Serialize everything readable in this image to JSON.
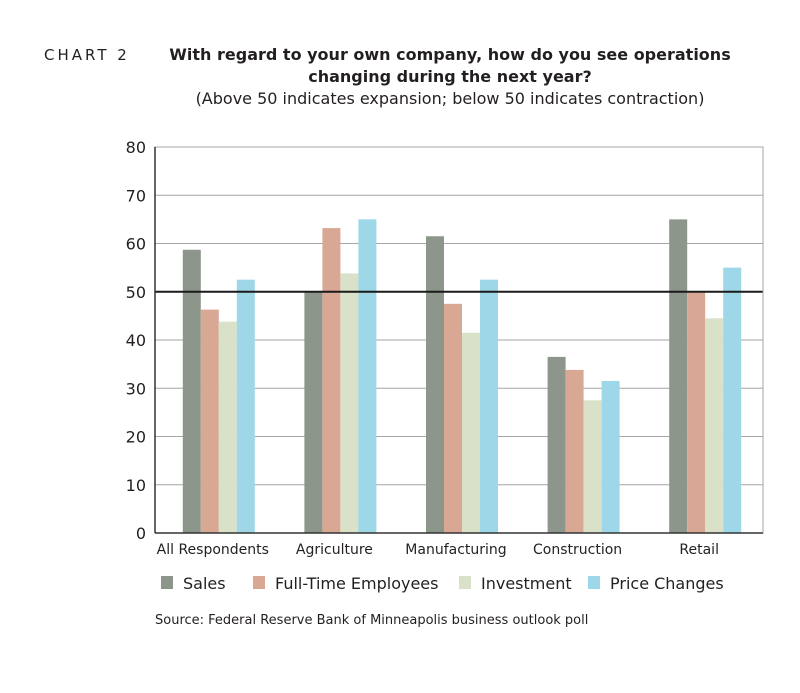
{
  "chart_label": "CHART 2",
  "title_line1": "With regard to your own company, how do you see operations",
  "title_line2": "changing during the next year?",
  "subtitle": "(Above 50 indicates expansion; below 50 indicates contraction)",
  "source": "Source: Federal Reserve Bank of Minneapolis business outlook poll",
  "chart_data": {
    "type": "bar",
    "categories": [
      "All Respondents",
      "Agriculture",
      "Manufacturing",
      "Construction",
      "Retail"
    ],
    "series": [
      {
        "name": "Sales",
        "color": "#8c968a",
        "values": [
          58.7,
          50.0,
          61.5,
          36.5,
          65.0
        ]
      },
      {
        "name": "Full-Time Employees",
        "color": "#d9a895",
        "values": [
          46.3,
          63.2,
          47.5,
          33.8,
          50.1
        ]
      },
      {
        "name": "Investment",
        "color": "#d9e2c9",
        "values": [
          43.8,
          53.8,
          41.5,
          27.5,
          44.5
        ]
      },
      {
        "name": "Price Changes",
        "color": "#9ed7e7",
        "values": [
          52.5,
          65.0,
          52.5,
          31.5,
          55.0
        ]
      }
    ],
    "ylim": [
      0,
      80
    ],
    "yticks": [
      0,
      10,
      20,
      30,
      40,
      50,
      60,
      70,
      80
    ],
    "reference_line": 50,
    "grid": true,
    "legend_position": "bottom"
  }
}
